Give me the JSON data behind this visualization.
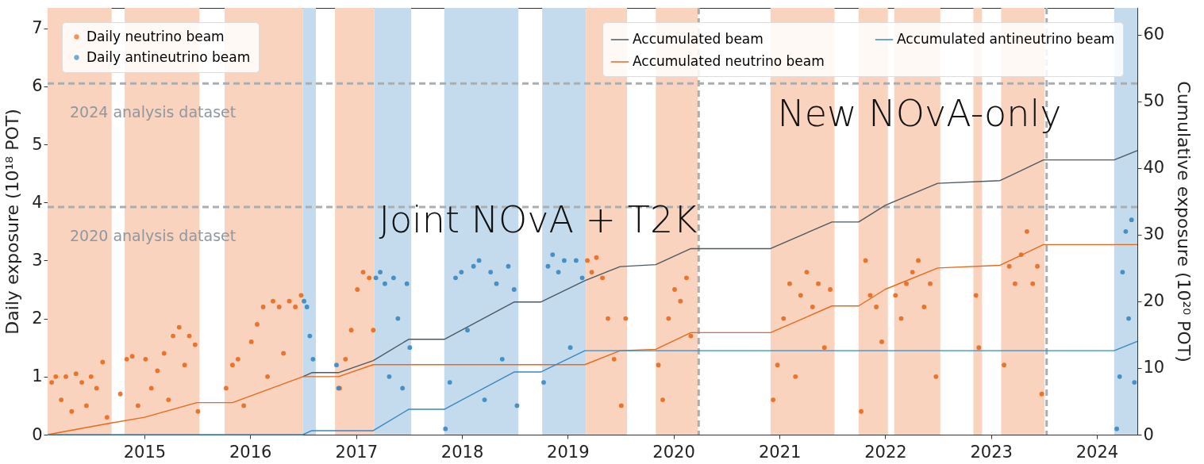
{
  "chart_data": {
    "type": "scatter",
    "ylabel": "Daily exposure (10¹⁸ POT)",
    "y2label": "Cumulative exposure (10²⁰ POT)",
    "legend": "top",
    "xlim": [
      "2014-02-01",
      "2024-05-20"
    ],
    "xticks": [
      "2015",
      "2016",
      "2017",
      "2018",
      "2019",
      "2020",
      "2021",
      "2022",
      "2023",
      "2024"
    ],
    "ylim": [
      0,
      7.35
    ],
    "yticks": [
      0,
      1,
      2,
      3,
      4,
      5,
      6,
      7
    ],
    "y2lim": [
      0,
      64
    ],
    "y2ticks": [
      0,
      10,
      20,
      30,
      40,
      50,
      60
    ],
    "series": [
      {
        "name": "Daily neutrino beam",
        "color": "#e8691c",
        "marker": "circle",
        "x": [
          "2014-02-15",
          "2014-03-01",
          "2014-03-20",
          "2014-04-05",
          "2014-04-25",
          "2014-05-10",
          "2014-05-30",
          "2014-06-15",
          "2014-07-01",
          "2014-07-20",
          "2014-08-10",
          "2014-08-25",
          "2014-10-10",
          "2014-11-01",
          "2014-11-20",
          "2014-12-10",
          "2015-01-05",
          "2015-01-25",
          "2015-02-15",
          "2015-03-10",
          "2015-03-25",
          "2015-04-10",
          "2015-05-01",
          "2015-05-20",
          "2015-06-05",
          "2015-06-25",
          "2015-07-05",
          "2015-10-10",
          "2015-11-01",
          "2015-11-20",
          "2015-12-10",
          "2016-01-05",
          "2016-01-25",
          "2016-02-15",
          "2016-03-01",
          "2016-03-20",
          "2016-04-10",
          "2016-04-25",
          "2016-05-15",
          "2016-06-05",
          "2016-06-25",
          "2016-11-05",
          "2016-11-25",
          "2016-12-15",
          "2017-01-05",
          "2017-01-25",
          "2017-02-15",
          "2017-03-01",
          "2019-03-10",
          "2019-03-25",
          "2019-04-10",
          "2019-05-01",
          "2019-05-20",
          "2019-06-10",
          "2019-07-05",
          "2019-07-20",
          "2019-11-10",
          "2019-11-25",
          "2019-12-15",
          "2020-01-05",
          "2020-01-25",
          "2020-02-15",
          "2020-03-01",
          "2020-12-10",
          "2020-12-25",
          "2021-01-15",
          "2021-02-05",
          "2021-02-25",
          "2021-03-15",
          "2021-04-05",
          "2021-04-25",
          "2021-05-15",
          "2021-06-05",
          "2021-06-25",
          "2021-10-10",
          "2021-10-25",
          "2021-11-10",
          "2021-12-01",
          "2021-12-20",
          "2022-02-05",
          "2022-02-25",
          "2022-03-15",
          "2022-04-05",
          "2022-04-25",
          "2022-05-15",
          "2022-06-05",
          "2022-06-25",
          "2022-11-10",
          "2022-11-20",
          "2023-02-15",
          "2023-03-05",
          "2023-03-25",
          "2023-04-15",
          "2023-05-05",
          "2023-05-25",
          "2023-06-10",
          "2023-06-25"
        ],
        "values": [
          0.9,
          1.0,
          0.6,
          1.0,
          0.4,
          1.05,
          0.9,
          0.5,
          1.0,
          0.8,
          1.25,
          0.3,
          0.7,
          1.3,
          1.35,
          0.5,
          1.3,
          0.8,
          1.1,
          1.4,
          0.6,
          1.7,
          1.85,
          1.2,
          1.7,
          1.55,
          0.4,
          0.8,
          1.2,
          1.3,
          0.5,
          1.6,
          1.9,
          2.2,
          1.0,
          2.3,
          2.2,
          1.4,
          2.3,
          2.2,
          2.4,
          0.8,
          1.3,
          1.8,
          2.5,
          2.8,
          2.7,
          1.8,
          3.0,
          2.8,
          3.05,
          2.7,
          2.0,
          1.3,
          0.5,
          2.0,
          1.2,
          0.6,
          2.0,
          2.5,
          2.3,
          2.7,
          1.7,
          0.6,
          1.2,
          2.0,
          2.6,
          1.0,
          2.4,
          2.8,
          2.2,
          2.6,
          1.5,
          2.5,
          0.4,
          3.0,
          2.4,
          2.2,
          1.6,
          2.4,
          2.0,
          2.6,
          2.8,
          3.0,
          2.2,
          2.6,
          1.0,
          2.4,
          1.5,
          1.2,
          2.9,
          2.6,
          3.1,
          3.5,
          2.6,
          2.9,
          0.7
        ]
      },
      {
        "name": "Daily antineutrino beam",
        "color": "#3a87c0",
        "marker": "circle",
        "x": [
          "2016-07-05",
          "2016-07-15",
          "2016-07-25",
          "2016-08-05",
          "2016-10-25",
          "2016-11-01",
          "2017-03-10",
          "2017-03-25",
          "2017-04-10",
          "2017-04-25",
          "2017-05-10",
          "2017-05-25",
          "2017-06-10",
          "2017-06-25",
          "2017-07-05",
          "2017-11-05",
          "2017-11-20",
          "2017-12-10",
          "2017-12-30",
          "2018-01-20",
          "2018-02-10",
          "2018-03-01",
          "2018-03-20",
          "2018-04-10",
          "2018-04-30",
          "2018-05-20",
          "2018-06-10",
          "2018-06-30",
          "2018-07-10",
          "2018-10-10",
          "2018-10-25",
          "2018-11-10",
          "2018-11-30",
          "2018-12-20",
          "2019-01-10",
          "2019-01-30",
          "2019-02-20",
          "2024-03-10",
          "2024-03-20",
          "2024-03-30",
          "2024-04-10",
          "2024-04-20",
          "2024-04-30",
          "2024-05-10"
        ],
        "values": [
          2.3,
          2.2,
          1.7,
          1.3,
          1.2,
          0.8,
          2.7,
          2.8,
          2.6,
          1.0,
          2.7,
          2.0,
          0.8,
          2.6,
          1.5,
          0.1,
          0.9,
          2.7,
          2.8,
          1.8,
          2.9,
          3.0,
          0.6,
          2.8,
          2.6,
          1.3,
          2.9,
          2.5,
          0.5,
          0.9,
          2.9,
          3.1,
          2.8,
          3.0,
          1.5,
          3.0,
          2.7,
          0.1,
          1.0,
          2.8,
          3.5,
          2.0,
          3.7,
          0.9
        ]
      },
      {
        "name": "Accumulated beam",
        "color": "#4b5963",
        "type": "line",
        "axis": "y2",
        "x": [
          "2016-07-01",
          "2016-08-01",
          "2016-11-01",
          "2017-03-01",
          "2017-07-01",
          "2017-11-01",
          "2018-07-01",
          "2018-10-01",
          "2019-03-01",
          "2019-07-01",
          "2019-11-01",
          "2020-03-01",
          "2020-12-01",
          "2021-07-01",
          "2021-10-01",
          "2022-01-01",
          "2022-07-01",
          "2023-02-01",
          "2023-07-01",
          "2024-03-01",
          "2024-05-20"
        ],
        "values": [
          8.7,
          9.3,
          9.3,
          11.1,
          14.3,
          14.3,
          19.9,
          19.9,
          23.1,
          25.2,
          25.5,
          27.9,
          27.9,
          31.9,
          31.9,
          34.4,
          37.7,
          38.1,
          41.2,
          41.2,
          42.6
        ]
      },
      {
        "name": "Accumulated neutrino beam",
        "color": "#e8691c",
        "type": "line",
        "axis": "y2",
        "x": [
          "2014-02-01",
          "2014-09-01",
          "2015-01-01",
          "2015-07-01",
          "2015-11-01",
          "2016-07-01",
          "2016-11-01",
          "2017-03-01",
          "2019-03-01",
          "2019-07-01",
          "2019-11-01",
          "2020-03-01",
          "2020-12-01",
          "2021-07-01",
          "2021-10-01",
          "2022-01-01",
          "2022-07-01",
          "2023-02-01",
          "2023-07-01",
          "2024-05-20"
        ],
        "values": [
          0,
          1.7,
          2.6,
          4.8,
          4.8,
          8.7,
          8.7,
          10.5,
          10.5,
          12.6,
          12.8,
          15.3,
          15.3,
          19.3,
          19.3,
          21.8,
          25,
          25.4,
          28.5,
          28.5
        ]
      },
      {
        "name": "Accumulated antineutrino beam",
        "color": "#3a87c0",
        "type": "line",
        "axis": "y2",
        "x": [
          "2014-02-01",
          "2016-07-01",
          "2016-08-01",
          "2017-03-01",
          "2017-07-01",
          "2017-11-01",
          "2018-07-01",
          "2018-10-01",
          "2019-03-01",
          "2024-03-01",
          "2024-05-20"
        ],
        "values": [
          0,
          0,
          0.6,
          0.6,
          3.8,
          3.8,
          9.4,
          9.4,
          12.6,
          12.6,
          14
        ]
      }
    ],
    "bands": [
      {
        "axis": "x",
        "from": "2014-02-01",
        "to": "2014-09-10",
        "color": "#f9d3bd"
      },
      {
        "axis": "x",
        "from": "2014-10-25",
        "to": "2015-07-10",
        "color": "#f9d3bd"
      },
      {
        "axis": "x",
        "from": "2015-10-05",
        "to": "2016-07-01",
        "color": "#f9d3bd"
      },
      {
        "axis": "x",
        "from": "2016-07-01",
        "to": "2016-08-15",
        "color": "#c4dbee"
      },
      {
        "axis": "x",
        "from": "2016-10-20",
        "to": "2017-03-05",
        "color": "#f9d3bd"
      },
      {
        "axis": "x",
        "from": "2017-03-05",
        "to": "2017-07-10",
        "color": "#c4dbee"
      },
      {
        "axis": "x",
        "from": "2017-11-01",
        "to": "2018-07-15",
        "color": "#c4dbee"
      },
      {
        "axis": "x",
        "from": "2018-10-05",
        "to": "2019-03-05",
        "color": "#c4dbee"
      },
      {
        "axis": "x",
        "from": "2019-03-05",
        "to": "2019-07-25",
        "color": "#f9d3bd"
      },
      {
        "axis": "x",
        "from": "2019-11-01",
        "to": "2020-03-25",
        "color": "#f9d3bd"
      },
      {
        "axis": "x",
        "from": "2020-12-01",
        "to": "2021-07-10",
        "color": "#f9d3bd"
      },
      {
        "axis": "x",
        "from": "2021-10-01",
        "to": "2022-01-10",
        "color": "#f9d3bd"
      },
      {
        "axis": "x",
        "from": "2022-02-01",
        "to": "2022-07-10",
        "color": "#f9d3bd"
      },
      {
        "axis": "x",
        "from": "2022-11-01",
        "to": "2022-12-01",
        "color": "#f9d3bd"
      },
      {
        "axis": "x",
        "from": "2023-02-05",
        "to": "2023-07-05",
        "color": "#f9d3bd"
      },
      {
        "axis": "x",
        "from": "2024-03-01",
        "to": "2024-05-20",
        "color": "#c4dbee"
      }
    ],
    "ref_lines": [
      {
        "axis": "y",
        "value": 6.05,
        "label": "2024 analysis dataset",
        "color": "#a9aeb3",
        "line_style": "dashed"
      },
      {
        "axis": "y",
        "value": 3.92,
        "label": "2020 analysis dataset",
        "color": "#a9aeb3",
        "line_style": "dashed"
      },
      {
        "axis": "x",
        "value": "2020-03-28",
        "color": "#a9aeb3",
        "line_style": "dashed"
      },
      {
        "axis": "x",
        "value": "2023-07-12",
        "color": "#a9aeb3",
        "line_style": "dashed"
      }
    ],
    "annotations": [
      "Joint NOvA + T2K",
      "New NOvA-only"
    ]
  }
}
